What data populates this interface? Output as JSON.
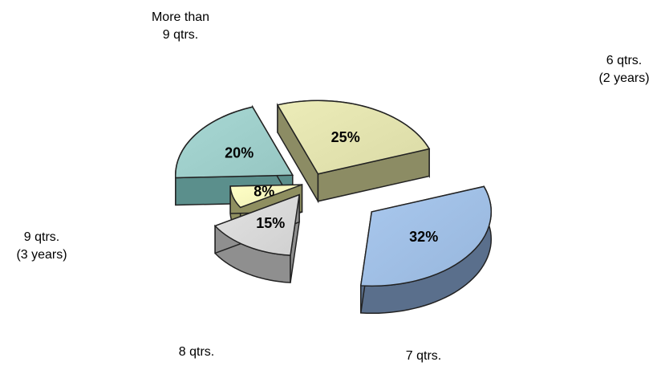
{
  "chart_data": {
    "type": "pie",
    "title": "",
    "slices": [
      {
        "label_lines": [
          "6 qtrs.",
          "(2 years)"
        ],
        "value": 32,
        "value_label": "32%",
        "color": "#a9c8ee",
        "side_color": "#5a6f8c"
      },
      {
        "label_lines": [
          "7 qtrs."
        ],
        "value": 15,
        "value_label": "15%",
        "color": "#e2e2e2",
        "side_color": "#8f8f8f"
      },
      {
        "label_lines": [
          "8 qtrs."
        ],
        "value": 8,
        "value_label": "8%",
        "color": "#ffffc6",
        "side_color": "#8f8f60"
      },
      {
        "label_lines": [
          "9 qtrs.",
          "(3 years)"
        ],
        "value": 20,
        "value_label": "20%",
        "color": "#a8d8d4",
        "side_color": "#5b8f8c"
      },
      {
        "label_lines": [
          "More than",
          "9 qtrs."
        ],
        "value": 25,
        "value_label": "25%",
        "color": "#ececb8",
        "side_color": "#8c8c64"
      }
    ]
  }
}
